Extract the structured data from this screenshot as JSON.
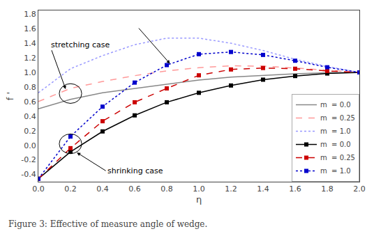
{
  "chart_data": {
    "type": "line",
    "xlabel": "η",
    "ylabel": "f '",
    "caption": "Figure 3: Effective of measure angle of wedge.",
    "x": [
      0.0,
      0.2,
      0.4,
      0.6,
      0.8,
      1.0,
      1.2,
      1.4,
      1.6,
      1.8,
      2.0
    ],
    "series": [
      {
        "name": "m  = 0.0",
        "color": "#888888",
        "line_style": "solid",
        "values": [
          0.5,
          0.63,
          0.72,
          0.78,
          0.84,
          0.895,
          0.935,
          0.96,
          0.98,
          0.995,
          1.0
        ]
      },
      {
        "name": "m  = 0.25",
        "color": "#ff9999",
        "line_style": "dash",
        "values": [
          0.6,
          0.78,
          0.875,
          0.955,
          1.02,
          1.065,
          1.09,
          1.085,
          1.06,
          1.03,
          1.0
        ]
      },
      {
        "name": "m  = 1.0",
        "color": "#9999ff",
        "line_style": "dot",
        "values": [
          0.72,
          1.05,
          1.23,
          1.38,
          1.47,
          1.47,
          1.4,
          1.3,
          1.18,
          1.08,
          1.0
        ]
      },
      {
        "name": "m  = 0.0",
        "color": "#000000",
        "line_style": "solid",
        "marker": "square",
        "values": [
          -0.46,
          -0.09,
          0.19,
          0.41,
          0.59,
          0.72,
          0.82,
          0.9,
          0.95,
          0.985,
          1.0
        ]
      },
      {
        "name": "m  = 0.25",
        "color": "#cc0000",
        "line_style": "dash",
        "marker": "square",
        "values": [
          -0.46,
          -0.04,
          0.33,
          0.59,
          0.78,
          0.96,
          1.04,
          1.06,
          1.05,
          1.02,
          1.0
        ]
      },
      {
        "name": "m  = 1.0",
        "color": "#0000cc",
        "line_style": "dot",
        "marker": "square",
        "values": [
          -0.46,
          0.12,
          0.53,
          0.86,
          1.1,
          1.25,
          1.28,
          1.24,
          1.16,
          1.07,
          1.0
        ]
      }
    ],
    "xlim": [
      0.0,
      2.0
    ],
    "ylim": [
      -0.5,
      1.85
    ],
    "xticks": [
      {
        "value": 0,
        "label": "0.0"
      },
      0.2,
      0.4,
      0.6,
      0.8,
      {
        "value": 1,
        "label": "1.0"
      },
      1.2,
      1.4,
      1.6,
      1.8,
      {
        "value": 2,
        "label": "2.0"
      }
    ],
    "yticks": [
      -0.4,
      -0.2,
      {
        "value": 0,
        "label": "0.0"
      },
      0.2,
      0.4,
      0.6,
      0.8,
      {
        "value": 1,
        "label": "1.0"
      },
      1.2,
      1.4,
      1.6,
      1.8
    ],
    "shapes": [
      {
        "type": "ellipse",
        "center": [
          0.2,
          0.71
        ],
        "width": 0.14,
        "height": 0.27
      },
      {
        "type": "ellipse",
        "center": [
          0.2,
          0.02
        ],
        "width": 0.14,
        "height": 0.27
      }
    ],
    "annotations": [
      {
        "text": "stretching case",
        "xy": [
          0.17,
          0.77
        ],
        "xytext": [
          0.07,
          1.38
        ]
      },
      {
        "text": "shrinking case",
        "xy": [
          0.24,
          -0.1
        ],
        "xytext": [
          0.42,
          -0.35
        ]
      },
      {
        "xy": [
          0.82,
          1.12
        ],
        "xytext": [
          0.62,
          1.62
        ]
      }
    ],
    "grid": false,
    "legend": "lower right"
  }
}
